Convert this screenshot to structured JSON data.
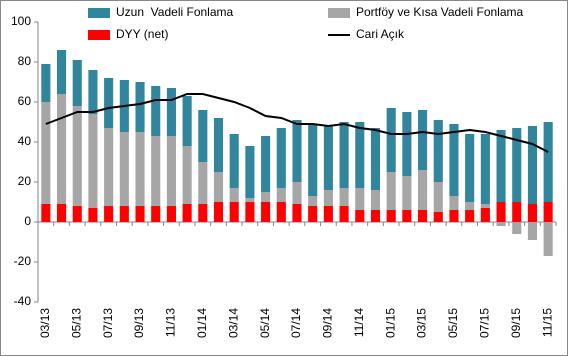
{
  "chart_data": {
    "type": "bar",
    "stacked": true,
    "categories": [
      "03/13",
      null,
      "05/13",
      null,
      "07/13",
      null,
      "09/13",
      null,
      "11/13",
      null,
      "01/14",
      null,
      "03/14",
      null,
      "05/14",
      null,
      "07/14",
      null,
      "09/14",
      null,
      "11/14",
      null,
      "01/15",
      null,
      "03/15",
      null,
      "05/15",
      null,
      "07/15",
      null,
      "09/15",
      null,
      "11/15"
    ],
    "series": [
      {
        "name": "DYY (net)",
        "color": "#ff0000",
        "values": [
          9,
          9,
          8,
          7,
          8,
          8,
          8,
          8,
          8,
          9,
          9,
          10,
          10,
          10,
          10,
          10,
          9,
          8,
          8,
          8,
          6,
          6,
          6,
          6,
          6,
          5,
          6,
          6,
          7,
          10,
          10,
          9,
          10
        ]
      },
      {
        "name": "Portföy ve Kısa Vadeli Fonlama",
        "color": "#a6a6a6",
        "values": [
          51,
          55,
          50,
          47,
          39,
          37,
          37,
          35,
          35,
          29,
          21,
          15,
          7,
          2,
          5,
          7,
          11,
          5,
          8,
          9,
          11,
          10,
          19,
          17,
          20,
          15,
          7,
          4,
          2,
          -2,
          -6,
          -9,
          -17
        ]
      },
      {
        "name": "Uzun  Vadeli Fonlama",
        "color": "#31859c",
        "values": [
          19,
          22,
          23,
          22,
          25,
          26,
          25,
          25,
          24,
          25,
          26,
          27,
          27,
          26,
          28,
          30,
          31,
          36,
          32,
          33,
          33,
          31,
          32,
          32,
          30,
          31,
          36,
          34,
          35,
          36,
          37,
          39,
          40
        ]
      },
      {
        "name": "Cari Açık",
        "color": "#000000",
        "type": "line",
        "values": [
          49,
          52,
          55,
          55,
          57,
          58,
          59,
          61,
          61,
          64,
          64,
          62,
          60,
          57,
          53,
          52,
          49,
          49,
          48,
          49,
          47,
          46,
          44,
          44,
          45,
          44,
          45,
          46,
          45,
          43,
          41,
          39,
          35
        ]
      }
    ],
    "ylim": [
      -40,
      100
    ],
    "yticks": [
      -40,
      -20,
      0,
      20,
      40,
      60,
      80,
      100
    ],
    "grid": false
  }
}
